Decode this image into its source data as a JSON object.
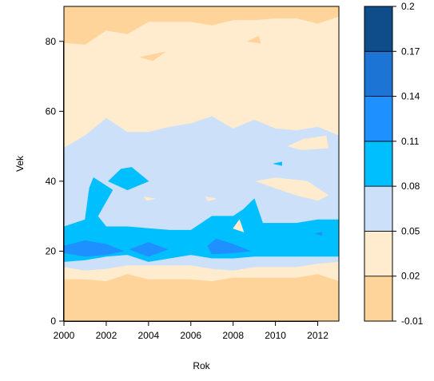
{
  "chart_data": {
    "type": "contour",
    "title": "",
    "xlabel": "Rok",
    "ylabel": "Vek",
    "xlim": [
      2000,
      2013
    ],
    "ylim": [
      0,
      90
    ],
    "xticks": [
      "2000",
      "2002",
      "2004",
      "2006",
      "2008",
      "2010",
      "2012"
    ],
    "yticks": [
      "0",
      "20",
      "40",
      "60",
      "80"
    ],
    "colorbar": {
      "levels": [
        -0.01,
        0.02,
        0.05,
        0.08,
        0.11,
        0.14,
        0.17,
        0.2
      ],
      "labels": [
        "-0.01",
        "0.02",
        "0.05",
        "0.08",
        "0.11",
        "0.14",
        "0.17",
        "0.2"
      ],
      "colors": [
        "#FFD49A",
        "#FFEBCD",
        "#CDE0FA",
        "#00BFFF",
        "#1E90FF",
        "#1C75D5",
        "#0F4C8A"
      ]
    },
    "regions": [
      {
        "level_index": 1,
        "polygons": [
          [
            [
              2000,
              79.5
            ],
            [
              2001,
              79
            ],
            [
              2002,
              83
            ],
            [
              2003,
              82
            ],
            [
              2004,
              85.5
            ],
            [
              2005,
              85.5
            ],
            [
              2006,
              85.5
            ],
            [
              2007,
              84.5
            ],
            [
              2008,
              86
            ],
            [
              2009,
              86
            ],
            [
              2010,
              86.5
            ],
            [
              2011,
              86.5
            ],
            [
              2012,
              85
            ],
            [
              2013,
              87
            ],
            [
              2013,
              11.5
            ],
            [
              2012,
              13.5
            ],
            [
              2011,
              12.5
            ],
            [
              2010,
              12.5
            ],
            [
              2009,
              12.5
            ],
            [
              2008,
              12.5
            ],
            [
              2007,
              11.5
            ],
            [
              2006,
              12
            ],
            [
              2005,
              12
            ],
            [
              2004,
              12
            ],
            [
              2003,
              13.5
            ],
            [
              2002,
              11.5
            ],
            [
              2001,
              12
            ],
            [
              2000,
              12
            ]
          ]
        ]
      },
      {
        "level_index": 0,
        "polygons": [
          [
            [
              2003.6,
              75.5
            ],
            [
              2004.8,
              77
            ],
            [
              2004.2,
              74.5
            ]
          ],
          [
            [
              2008.7,
              80
            ],
            [
              2009.2,
              81.5
            ],
            [
              2009.3,
              79.5
            ]
          ]
        ]
      },
      {
        "level_index": 2,
        "polygons": [
          [
            [
              2000,
              49.5
            ],
            [
              2001,
              53
            ],
            [
              2002,
              58
            ],
            [
              2003,
              54
            ],
            [
              2004,
              54
            ],
            [
              2005,
              55.5
            ],
            [
              2006,
              56.5
            ],
            [
              2007,
              58.5
            ],
            [
              2008,
              55
            ],
            [
              2009,
              57.5
            ],
            [
              2010,
              55
            ],
            [
              2011,
              54.5
            ],
            [
              2012,
              55.5
            ],
            [
              2013,
              53
            ],
            [
              2013,
              17
            ],
            [
              2012,
              16.5
            ],
            [
              2011,
              15.5
            ],
            [
              2010,
              15.5
            ],
            [
              2009,
              15.5
            ],
            [
              2008,
              14.5
            ],
            [
              2007,
              15
            ],
            [
              2006,
              16
            ],
            [
              2005,
              16
            ],
            [
              2004,
              16
            ],
            [
              2003,
              16
            ],
            [
              2002,
              15
            ],
            [
              2001,
              14.5
            ],
            [
              2000,
              15.5
            ]
          ]
        ]
      },
      {
        "level_index": 1,
        "polygons": [
          [
            [
              2010.6,
              50
            ],
            [
              2011.3,
              52
            ],
            [
              2012.4,
              53
            ],
            [
              2012.5,
              49.5
            ],
            [
              2011.2,
              49
            ]
          ],
          [
            [
              2009.1,
              40
            ],
            [
              2010,
              38
            ],
            [
              2011,
              36
            ],
            [
              2012,
              34.5
            ],
            [
              2012.5,
              36
            ],
            [
              2011.5,
              40
            ],
            [
              2010,
              41
            ]
          ],
          [
            [
              2003.8,
              35.5
            ],
            [
              2004.3,
              35
            ],
            [
              2003.9,
              34.5
            ]
          ],
          [
            [
              2006.7,
              35.5
            ],
            [
              2007.2,
              35
            ],
            [
              2006.8,
              34.3
            ]
          ]
        ]
      },
      {
        "level_index": 3,
        "polygons": [
          [
            [
              2000,
              27
            ],
            [
              2001,
              29
            ],
            [
              2001.2,
              38
            ],
            [
              2001.4,
              41
            ],
            [
              2002.3,
              37.5
            ],
            [
              2001.6,
              30
            ],
            [
              2002,
              27
            ],
            [
              2003,
              27
            ],
            [
              2004,
              26.5
            ],
            [
              2005,
              26
            ],
            [
              2006,
              26
            ],
            [
              2007,
              30
            ],
            [
              2008,
              30
            ],
            [
              2008.5,
              32
            ],
            [
              2009,
              35
            ],
            [
              2009.4,
              28
            ],
            [
              2010,
              28
            ],
            [
              2011,
              28
            ],
            [
              2012,
              29
            ],
            [
              2013,
              29
            ],
            [
              2013,
              18.5
            ],
            [
              2012,
              18.5
            ],
            [
              2011,
              18.5
            ],
            [
              2010,
              18.5
            ],
            [
              2009,
              18.5
            ],
            [
              2008,
              18
            ],
            [
              2007,
              18
            ],
            [
              2006,
              19
            ],
            [
              2005,
              18
            ],
            [
              2004,
              17
            ],
            [
              2003,
              19
            ],
            [
              2002,
              18.5
            ],
            [
              2001,
              17.5
            ],
            [
              2000,
              17
            ]
          ],
          [
            [
              2002.1,
              40
            ],
            [
              2002.7,
              43.5
            ],
            [
              2003.2,
              44
            ],
            [
              2004,
              40
            ],
            [
              2003,
              37.5
            ]
          ],
          [
            [
              2009.9,
              45
            ],
            [
              2010.3,
              45.5
            ],
            [
              2010.3,
              44.5
            ]
          ]
        ]
      },
      {
        "level_index": 1,
        "polygons": [
          [
            [
              2008,
              26.5
            ],
            [
              2008.3,
              29
            ],
            [
              2008.5,
              25.5
            ]
          ]
        ]
      },
      {
        "level_index": 4,
        "polygons": [
          [
            [
              2000,
              21.5
            ],
            [
              2001,
              23
            ],
            [
              2002,
              22
            ],
            [
              2002.8,
              20
            ],
            [
              2002,
              19
            ],
            [
              2001,
              18.5
            ],
            [
              2000,
              19.5
            ]
          ],
          [
            [
              2003.1,
              20.5
            ],
            [
              2004,
              22.5
            ],
            [
              2004.9,
              20.5
            ],
            [
              2004,
              18.5
            ]
          ],
          [
            [
              2006.8,
              21.5
            ],
            [
              2007.2,
              23.5
            ],
            [
              2008,
              22
            ],
            [
              2008.8,
              20
            ],
            [
              2008,
              19.5
            ],
            [
              2007,
              19.2
            ]
          ],
          [
            [
              2011.9,
              25
            ],
            [
              2012.2,
              25.5
            ],
            [
              2012.2,
              24.5
            ]
          ]
        ]
      }
    ]
  }
}
